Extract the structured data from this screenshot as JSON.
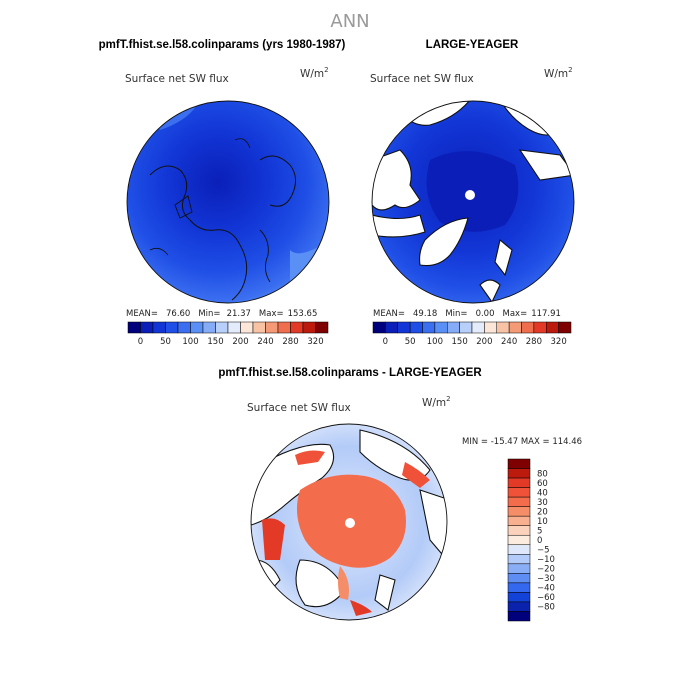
{
  "figure": {
    "season": "ANN",
    "panels": [
      {
        "title": "pmfT.fhist.se.l58.colinparams (yrs 1980-1987)",
        "variable": "Surface net SW flux",
        "units": "W/m",
        "units_exp": "2",
        "stats": {
          "mean_label": "MEAN=",
          "mean": "76.60",
          "min_label": "Min=",
          "min": "21.37",
          "max_label": "Max=",
          "max": "153.65"
        }
      },
      {
        "title": "LARGE-YEAGER",
        "variable": "Surface net SW flux",
        "units": "W/m",
        "units_exp": "2",
        "stats": {
          "mean_label": "MEAN=",
          "mean": "49.18",
          "min_label": "Min=",
          "min": "0.00",
          "max_label": "Max=",
          "max": "117.91"
        }
      },
      {
        "title": "pmfT.fhist.se.l58.colinparams - LARGE-YEAGER",
        "variable": "Surface net SW flux",
        "units": "W/m",
        "units_exp": "2",
        "stats_text": "MIN = -15.47 MAX = 114.46"
      }
    ],
    "abs_colorbar": {
      "colors": [
        "#00007c",
        "#0b1fb8",
        "#1236d6",
        "#1f4fe6",
        "#3b6ff0",
        "#5a8ff5",
        "#86acf7",
        "#b8cff9",
        "#e4ecfb",
        "#fbe6d8",
        "#f8c3a5",
        "#f49a76",
        "#ef6e4e",
        "#e23a26",
        "#bd1a0e",
        "#7e0000"
      ],
      "ticks": [
        "0",
        "50",
        "100",
        "150",
        "200",
        "240",
        "280",
        "320"
      ]
    },
    "diff_colorbar": {
      "colors": [
        "#7e0000",
        "#bd1a0e",
        "#e23a26",
        "#ef5238",
        "#f36d4c",
        "#f58e68",
        "#f8b091",
        "#fbd3bc",
        "#fbecdf",
        "#dfe8fb",
        "#b3cbf8",
        "#8aaef6",
        "#5e8ef3",
        "#3468ee",
        "#1342d8",
        "#0a22ac",
        "#00007c"
      ],
      "ticks": [
        "80",
        "60",
        "40",
        "30",
        "20",
        "10",
        "5",
        "0",
        "−5",
        "−10",
        "−20",
        "−30",
        "−40",
        "−60",
        "−80"
      ]
    }
  }
}
